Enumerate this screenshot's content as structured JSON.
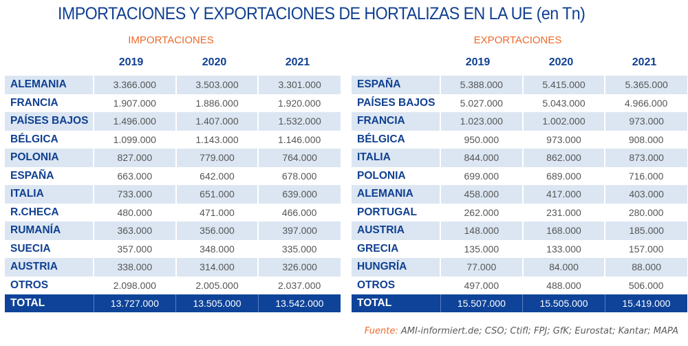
{
  "title": "IMPORTACIONES Y EXPORTACIONES DE HORTALIZAS EN LA UE (en Tn)",
  "source": {
    "label": "Fuente:",
    "text": " AMI-informiert.de; CSO; Ctifl; FPJ; GfK; Eurostat; Kantar; MAPA"
  },
  "colors": {
    "title": "#0f3f91",
    "accent": "#ec6a2c",
    "shade": "#dbe6f2",
    "total": "#0e4399"
  },
  "chart_data": [
    {
      "type": "table",
      "title": "IMPORTACIONES",
      "columns": [
        "2019",
        "2020",
        "2021"
      ],
      "rows": [
        {
          "country": "ALEMANIA",
          "values": [
            "3.366.000",
            "3.503.000",
            "3.301.000"
          ]
        },
        {
          "country": "FRANCIA",
          "values": [
            "1.907.000",
            "1.886.000",
            "1.920.000"
          ]
        },
        {
          "country": "PAÍSES BAJOS",
          "values": [
            "1.496.000",
            "1.407.000",
            "1.532.000"
          ]
        },
        {
          "country": "BÉLGICA",
          "values": [
            "1.099.000",
            "1.143.000",
            "1.146.000"
          ]
        },
        {
          "country": "POLONIA",
          "values": [
            "827.000",
            "779.000",
            "764.000"
          ]
        },
        {
          "country": "ESPAÑA",
          "values": [
            "663.000",
            "642.000",
            "678.000"
          ]
        },
        {
          "country": "ITALIA",
          "values": [
            "733.000",
            "651.000",
            "639.000"
          ]
        },
        {
          "country": "R.CHECA",
          "values": [
            "480.000",
            "471.000",
            "466.000"
          ]
        },
        {
          "country": "RUMANÍA",
          "values": [
            "363.000",
            "356.000",
            "397.000"
          ]
        },
        {
          "country": "SUECIA",
          "values": [
            "357.000",
            "348.000",
            "335.000"
          ]
        },
        {
          "country": "AUSTRIA",
          "values": [
            "338.000",
            "314.000",
            "326.000"
          ]
        },
        {
          "country": "OTROS",
          "values": [
            "2.098.000",
            "2.005.000",
            "2.037.000"
          ]
        }
      ],
      "total": {
        "label": "TOTAL",
        "values": [
          "13.727.000",
          "13.505.000",
          "13.542.000"
        ]
      }
    },
    {
      "type": "table",
      "title": "EXPORTACIONES",
      "columns": [
        "2019",
        "2020",
        "2021"
      ],
      "rows": [
        {
          "country": "ESPAÑA",
          "values": [
            "5.388.000",
            "5.415.000",
            "5.365.000"
          ]
        },
        {
          "country": "PAÍSES BAJOS",
          "values": [
            "5.027.000",
            "5.043.000",
            "4.966.000"
          ]
        },
        {
          "country": "FRANCIA",
          "values": [
            "1.023.000",
            "1.002.000",
            "973.000"
          ]
        },
        {
          "country": "BÉLGICA",
          "values": [
            "950.000",
            "973.000",
            "908.000"
          ]
        },
        {
          "country": "ITALIA",
          "values": [
            "844.000",
            "862.000",
            "873.000"
          ]
        },
        {
          "country": "POLONIA",
          "values": [
            "699.000",
            "689.000",
            "716.000"
          ]
        },
        {
          "country": "ALEMANIA",
          "values": [
            "458.000",
            "417.000",
            "403.000"
          ]
        },
        {
          "country": "PORTUGAL",
          "values": [
            "262.000",
            "231.000",
            "280.000"
          ]
        },
        {
          "country": "AUSTRIA",
          "values": [
            "148.000",
            "168.000",
            "185.000"
          ]
        },
        {
          "country": "GRECIA",
          "values": [
            "135.000",
            "133.000",
            "157.000"
          ]
        },
        {
          "country": "HUNGRÍA",
          "values": [
            "77.000",
            "84.000",
            "88.000"
          ]
        },
        {
          "country": "OTROS",
          "values": [
            "497.000",
            "488.000",
            "506.000"
          ]
        }
      ],
      "total": {
        "label": "TOTAL",
        "values": [
          "15.507.000",
          "15.505.000",
          "15.419.000"
        ]
      }
    }
  ]
}
